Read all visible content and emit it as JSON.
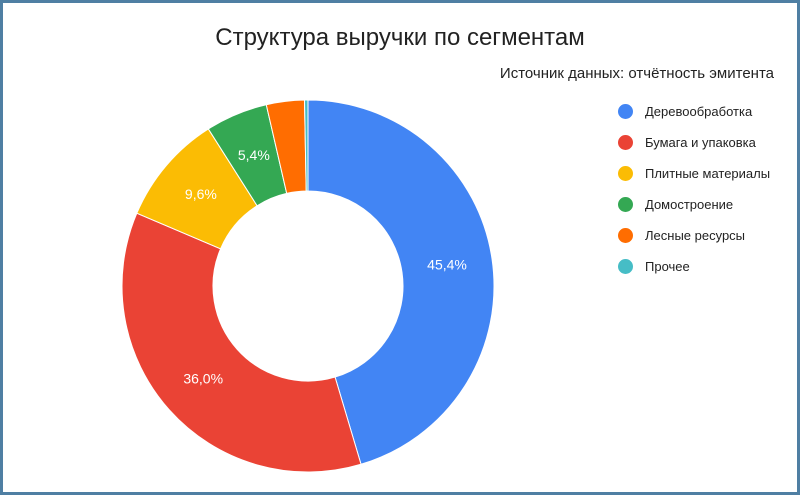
{
  "chart_data": {
    "type": "pie",
    "title": "Структура выручки по сегментам",
    "subtitle": "Источник данных: отчётность эмитента",
    "donut": true,
    "legend_position": "right",
    "labels": [
      "Деревообработка",
      "Бумага и упаковка",
      "Плитные материалы",
      "Домостроение",
      "Лесные ресурсы",
      "Прочее"
    ],
    "values": [
      45.4,
      36.0,
      9.6,
      5.4,
      3.3,
      0.3
    ],
    "value_labels": [
      "45,4%",
      "36,0%",
      "9,6%",
      "5,4%",
      "",
      ""
    ],
    "colors": [
      "#4285f4",
      "#ea4335",
      "#fbbc04",
      "#34a853",
      "#ff6d01",
      "#46bdc6"
    ]
  }
}
